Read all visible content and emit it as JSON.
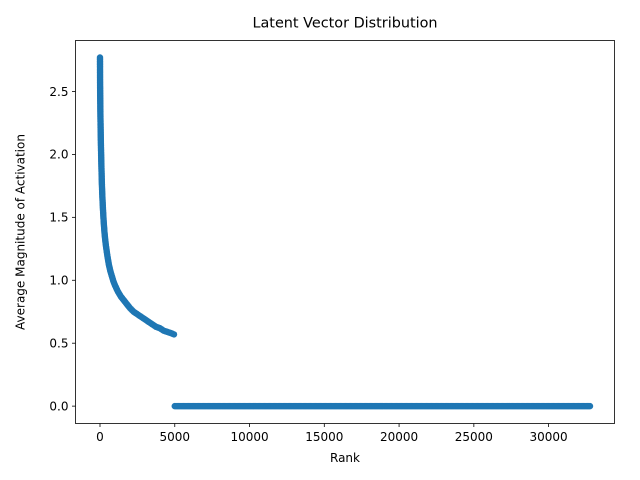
{
  "chart_data": {
    "type": "scatter",
    "title": "Latent Vector Distribution",
    "xlabel": "Rank",
    "ylabel": "Average Magnitude of Activation",
    "xlim": [
      -1638,
      34406
    ],
    "ylim": [
      -0.138,
      2.905
    ],
    "xticks": [
      0,
      5000,
      10000,
      15000,
      20000,
      25000,
      30000
    ],
    "xtick_labels": [
      "0",
      "5000",
      "10000",
      "15000",
      "20000",
      "25000",
      "30000"
    ],
    "yticks": [
      0.0,
      0.5,
      1.0,
      1.5,
      2.0,
      2.5
    ],
    "ytick_labels": [
      "0.0",
      "0.5",
      "1.0",
      "1.5",
      "2.0",
      "2.5"
    ],
    "grid": false,
    "marker_color": "#1f77b4",
    "series": [
      {
        "x": [
          0,
          5,
          10,
          15,
          20,
          25,
          30,
          40,
          50,
          60,
          70,
          80,
          90,
          100,
          120,
          140,
          160,
          180,
          200,
          250,
          300,
          350,
          400,
          500,
          600,
          700,
          800,
          900,
          1000,
          1200,
          1400,
          1600,
          1800,
          2000,
          2250,
          2500,
          2750,
          3000,
          3250,
          3500,
          3750,
          4000,
          4250,
          4500,
          4750,
          4950,
          5000,
          6000,
          8000,
          10000,
          12000,
          14000,
          16000,
          18000,
          20000,
          22000,
          24000,
          26000,
          28000,
          30000,
          32000,
          32767
        ],
        "y": [
          2.77,
          2.58,
          2.51,
          2.45,
          2.41,
          2.35,
          2.3,
          2.22,
          2.15,
          2.09,
          2.03,
          1.98,
          1.93,
          1.88,
          1.79,
          1.72,
          1.66,
          1.61,
          1.56,
          1.46,
          1.38,
          1.32,
          1.27,
          1.19,
          1.12,
          1.07,
          1.03,
          0.99,
          0.96,
          0.91,
          0.87,
          0.84,
          0.81,
          0.78,
          0.75,
          0.73,
          0.71,
          0.69,
          0.67,
          0.65,
          0.63,
          0.62,
          0.6,
          0.59,
          0.58,
          0.57,
          0.0,
          0.0,
          0.0,
          0.0,
          0.0,
          0.0,
          0.0,
          0.0,
          0.0,
          0.0,
          0.0,
          0.0,
          0.0,
          0.0,
          0.0,
          0.0
        ]
      }
    ]
  }
}
